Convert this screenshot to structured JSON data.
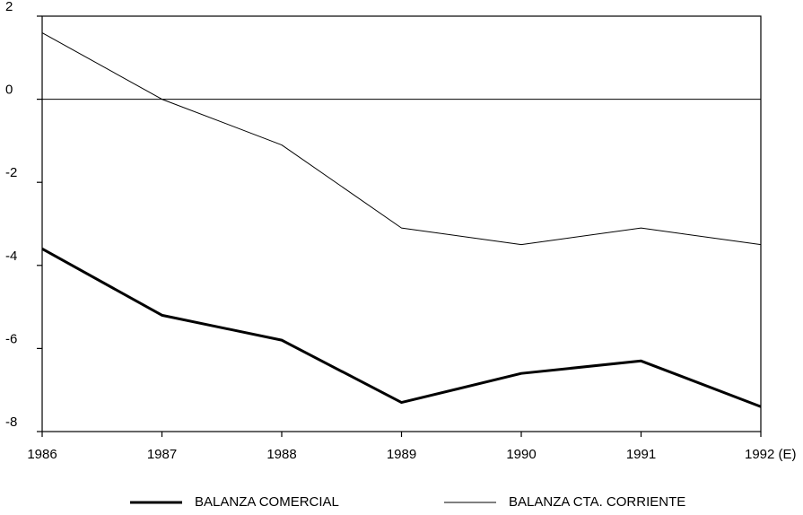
{
  "chart_data": {
    "type": "line",
    "categories": [
      "1986",
      "1987",
      "1988",
      "1989",
      "1990",
      "1991",
      "1992 (E)"
    ],
    "series": [
      {
        "name": "BALANZA COMERCIAL",
        "color": "#000000",
        "line_width": 3,
        "values": [
          -3.6,
          -5.2,
          -5.8,
          -7.3,
          -6.6,
          -6.3,
          -7.4
        ]
      },
      {
        "name": "BALANZA CTA. CORRIENTE",
        "color": "#000000",
        "line_width": 1,
        "values": [
          1.6,
          0,
          -1.1,
          -3.1,
          -3.5,
          -3.1,
          -3.5
        ]
      }
    ],
    "ylim": [
      -8,
      2
    ],
    "yticks": [
      2,
      0,
      -2,
      -4,
      -6,
      -8
    ],
    "grid": false,
    "legend": "bottom"
  }
}
